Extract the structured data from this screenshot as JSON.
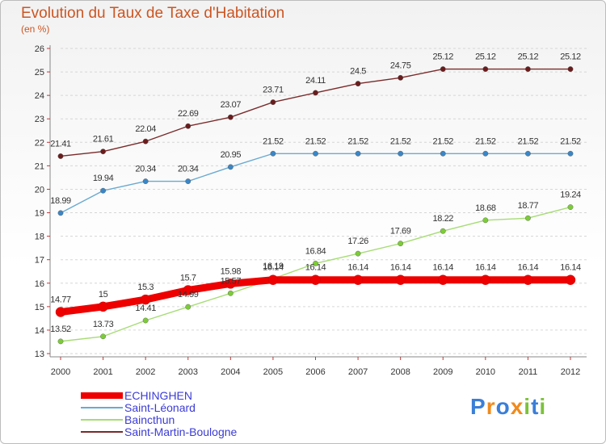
{
  "header": {
    "title": "Evolution du Taux de Taxe d'Habitation",
    "subtitle": "(en %)"
  },
  "logo_text": "Proxiti",
  "chart_data": {
    "type": "line",
    "x": [
      "2000",
      "2001",
      "2002",
      "2003",
      "2004",
      "2005",
      "2006",
      "2007",
      "2008",
      "2009",
      "2010",
      "2011",
      "2012"
    ],
    "ylim": [
      13,
      26
    ],
    "yticks": [
      13,
      14,
      15,
      16,
      17,
      18,
      19,
      20,
      21,
      22,
      23,
      24,
      25,
      26
    ],
    "grid": "horizontal dashed",
    "legend_position": "bottom-left",
    "series": [
      {
        "name": "ECHINGHEN",
        "color": "#ee0000",
        "marker_color": "#ee0000",
        "values": [
          14.77,
          15,
          15.3,
          15.7,
          15.98,
          16.14,
          16.14,
          16.14,
          16.14,
          16.14,
          16.14,
          16.14,
          16.14
        ],
        "labels": [
          "14.77",
          "15",
          "15.3",
          "15.7",
          "15.98",
          "16.14",
          "16.14",
          "16.14",
          "16.14",
          "16.14",
          "16.14",
          "16.14",
          "16.14"
        ]
      },
      {
        "name": "Saint-Léonard",
        "color": "#6aaad0",
        "marker_color": "#3a86c6",
        "values": [
          18.99,
          19.94,
          20.34,
          20.34,
          20.95,
          21.52,
          21.52,
          21.52,
          21.52,
          21.52,
          21.52,
          21.52,
          21.52
        ],
        "labels": [
          "18.99",
          "19.94",
          "20.34",
          "20.34",
          "20.95",
          "21.52",
          "21.52",
          "21.52",
          "21.52",
          "21.52",
          "21.52",
          "21.52",
          "21.52"
        ]
      },
      {
        "name": "Baincthun",
        "color": "#a6dc74",
        "marker_color": "#7ccc36",
        "values": [
          13.52,
          13.73,
          14.41,
          14.99,
          15.57,
          16.19,
          16.84,
          17.26,
          17.69,
          18.22,
          18.68,
          18.77,
          19.24
        ],
        "labels": [
          "13.52",
          "13.73",
          "14.41",
          "14.99",
          "15.57",
          "16.19",
          "16.84",
          "17.26",
          "17.69",
          "18.22",
          "18.68",
          "18.77",
          "19.24"
        ]
      },
      {
        "name": "Saint-Martin-Boulogne",
        "color": "#7a2a2a",
        "marker_color": "#6a1c1c",
        "values": [
          21.41,
          21.61,
          22.04,
          22.69,
          23.07,
          23.71,
          24.11,
          24.5,
          24.75,
          25.12,
          25.12,
          25.12,
          25.12
        ],
        "labels": [
          "21.41",
          "21.61",
          "22.04",
          "22.69",
          "23.07",
          "23.71",
          "24.11",
          "24.5",
          "24.75",
          "25.12",
          "25.12",
          "25.12",
          "25.12"
        ]
      }
    ]
  }
}
